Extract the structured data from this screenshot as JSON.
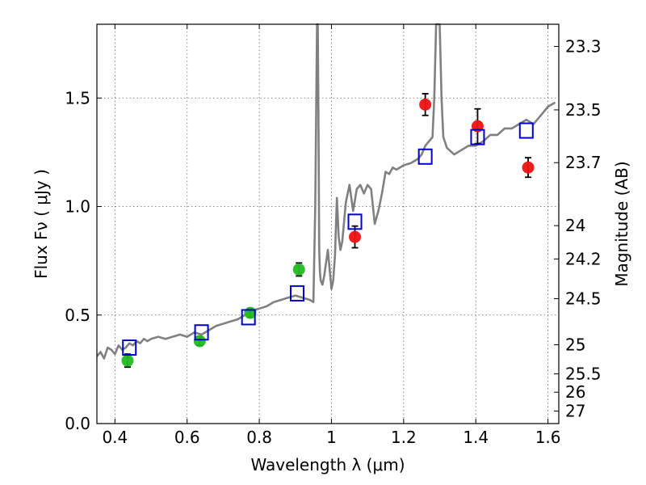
{
  "chart_data": {
    "type": "scatter",
    "xlabel": "Wavelength  λ (μm)",
    "ylabel": "Flux  Fν  ( μJy )",
    "ylabel_right": "Magnitude (AB)",
    "xlim": [
      0.35,
      1.63
    ],
    "ylim": [
      0.0,
      1.84
    ],
    "x_ticks": [
      0.4,
      0.6,
      0.8,
      1.0,
      1.2,
      1.4,
      1.6
    ],
    "x_tick_labels": [
      "0.4",
      "0.6",
      "0.8",
      "1",
      "1.2",
      "1.4",
      "1.6"
    ],
    "y_ticks": [
      0.0,
      0.5,
      1.0,
      1.5
    ],
    "y_tick_labels": [
      "0.0",
      "0.5",
      "1.0",
      "1.5"
    ],
    "right_ticks": [
      23.3,
      23.5,
      23.7,
      24,
      24.2,
      24.5,
      25,
      25.5,
      26,
      27
    ],
    "right_tick_labels": [
      "23.3",
      "23.5",
      "23.7",
      "24",
      "24.2",
      "24.5",
      "25",
      "25.5",
      "26",
      "27"
    ],
    "grid": true,
    "colors": {
      "model_line": "#808080",
      "optical_points": "#22bb22",
      "nir_points": "#ee1111",
      "model_photometry": "#0000cc",
      "error_bar": "#000000"
    },
    "series": [
      {
        "kind": "line",
        "x": [
          0.35,
          0.36,
          0.37,
          0.38,
          0.39,
          0.4,
          0.41,
          0.42,
          0.43,
          0.44,
          0.45,
          0.46,
          0.47,
          0.48,
          0.49,
          0.5,
          0.52,
          0.54,
          0.56,
          0.58,
          0.6,
          0.62,
          0.64,
          0.66,
          0.68,
          0.7,
          0.72,
          0.74,
          0.76,
          0.78,
          0.8,
          0.82,
          0.84,
          0.86,
          0.88,
          0.9,
          0.92,
          0.94,
          0.95,
          0.955,
          0.96,
          0.962,
          0.964,
          0.966,
          0.968,
          0.97,
          0.975,
          0.98,
          0.99,
          1.0,
          1.005,
          1.01,
          1.015,
          1.02,
          1.025,
          1.03,
          1.04,
          1.05,
          1.06,
          1.07,
          1.08,
          1.09,
          1.1,
          1.11,
          1.12,
          1.13,
          1.14,
          1.15,
          1.16,
          1.17,
          1.18,
          1.2,
          1.22,
          1.24,
          1.25,
          1.26,
          1.27,
          1.28,
          1.285,
          1.29,
          1.295,
          1.3,
          1.305,
          1.31,
          1.32,
          1.34,
          1.36,
          1.38,
          1.4,
          1.42,
          1.44,
          1.46,
          1.48,
          1.5,
          1.52,
          1.54,
          1.56,
          1.58,
          1.6,
          1.62
        ],
        "y": [
          0.31,
          0.33,
          0.3,
          0.35,
          0.34,
          0.32,
          0.36,
          0.34,
          0.35,
          0.37,
          0.36,
          0.38,
          0.37,
          0.39,
          0.38,
          0.39,
          0.4,
          0.39,
          0.4,
          0.41,
          0.4,
          0.42,
          0.41,
          0.43,
          0.45,
          0.46,
          0.47,
          0.48,
          0.5,
          0.52,
          0.53,
          0.54,
          0.56,
          0.57,
          0.58,
          0.59,
          0.58,
          0.57,
          0.56,
          1.0,
          1.84,
          1.84,
          1.4,
          0.8,
          0.7,
          0.66,
          0.64,
          0.68,
          0.8,
          0.62,
          0.66,
          0.78,
          1.04,
          0.86,
          0.8,
          0.84,
          1.02,
          1.1,
          0.98,
          1.08,
          1.1,
          1.06,
          1.1,
          1.08,
          0.92,
          0.98,
          1.06,
          1.16,
          1.15,
          1.18,
          1.17,
          1.19,
          1.2,
          1.22,
          1.24,
          1.28,
          1.3,
          1.32,
          1.5,
          1.84,
          1.84,
          1.84,
          1.5,
          1.32,
          1.27,
          1.24,
          1.26,
          1.28,
          1.28,
          1.3,
          1.33,
          1.33,
          1.36,
          1.36,
          1.38,
          1.4,
          1.38,
          1.42,
          1.46,
          1.48
        ]
      },
      {
        "kind": "points",
        "marker": "circle",
        "color": "#22bb22",
        "x": [
          0.435,
          0.635,
          0.775,
          0.91
        ],
        "y": [
          0.29,
          0.38,
          0.51,
          0.71
        ],
        "yerr": [
          0.03,
          0.02,
          0.02,
          0.03
        ]
      },
      {
        "kind": "points",
        "marker": "circle",
        "color": "#ee1111",
        "x": [
          1.065,
          1.26,
          1.405,
          1.545
        ],
        "y": [
          0.86,
          1.47,
          1.37,
          1.18
        ],
        "yerr": [
          0.05,
          0.05,
          0.08,
          0.045
        ]
      },
      {
        "kind": "points",
        "marker": "open-square",
        "color": "#0000cc",
        "x": [
          0.44,
          0.64,
          0.77,
          0.905,
          1.065,
          1.26,
          1.405,
          1.54
        ],
        "y": [
          0.35,
          0.42,
          0.49,
          0.6,
          0.93,
          1.23,
          1.32,
          1.35
        ]
      }
    ]
  }
}
